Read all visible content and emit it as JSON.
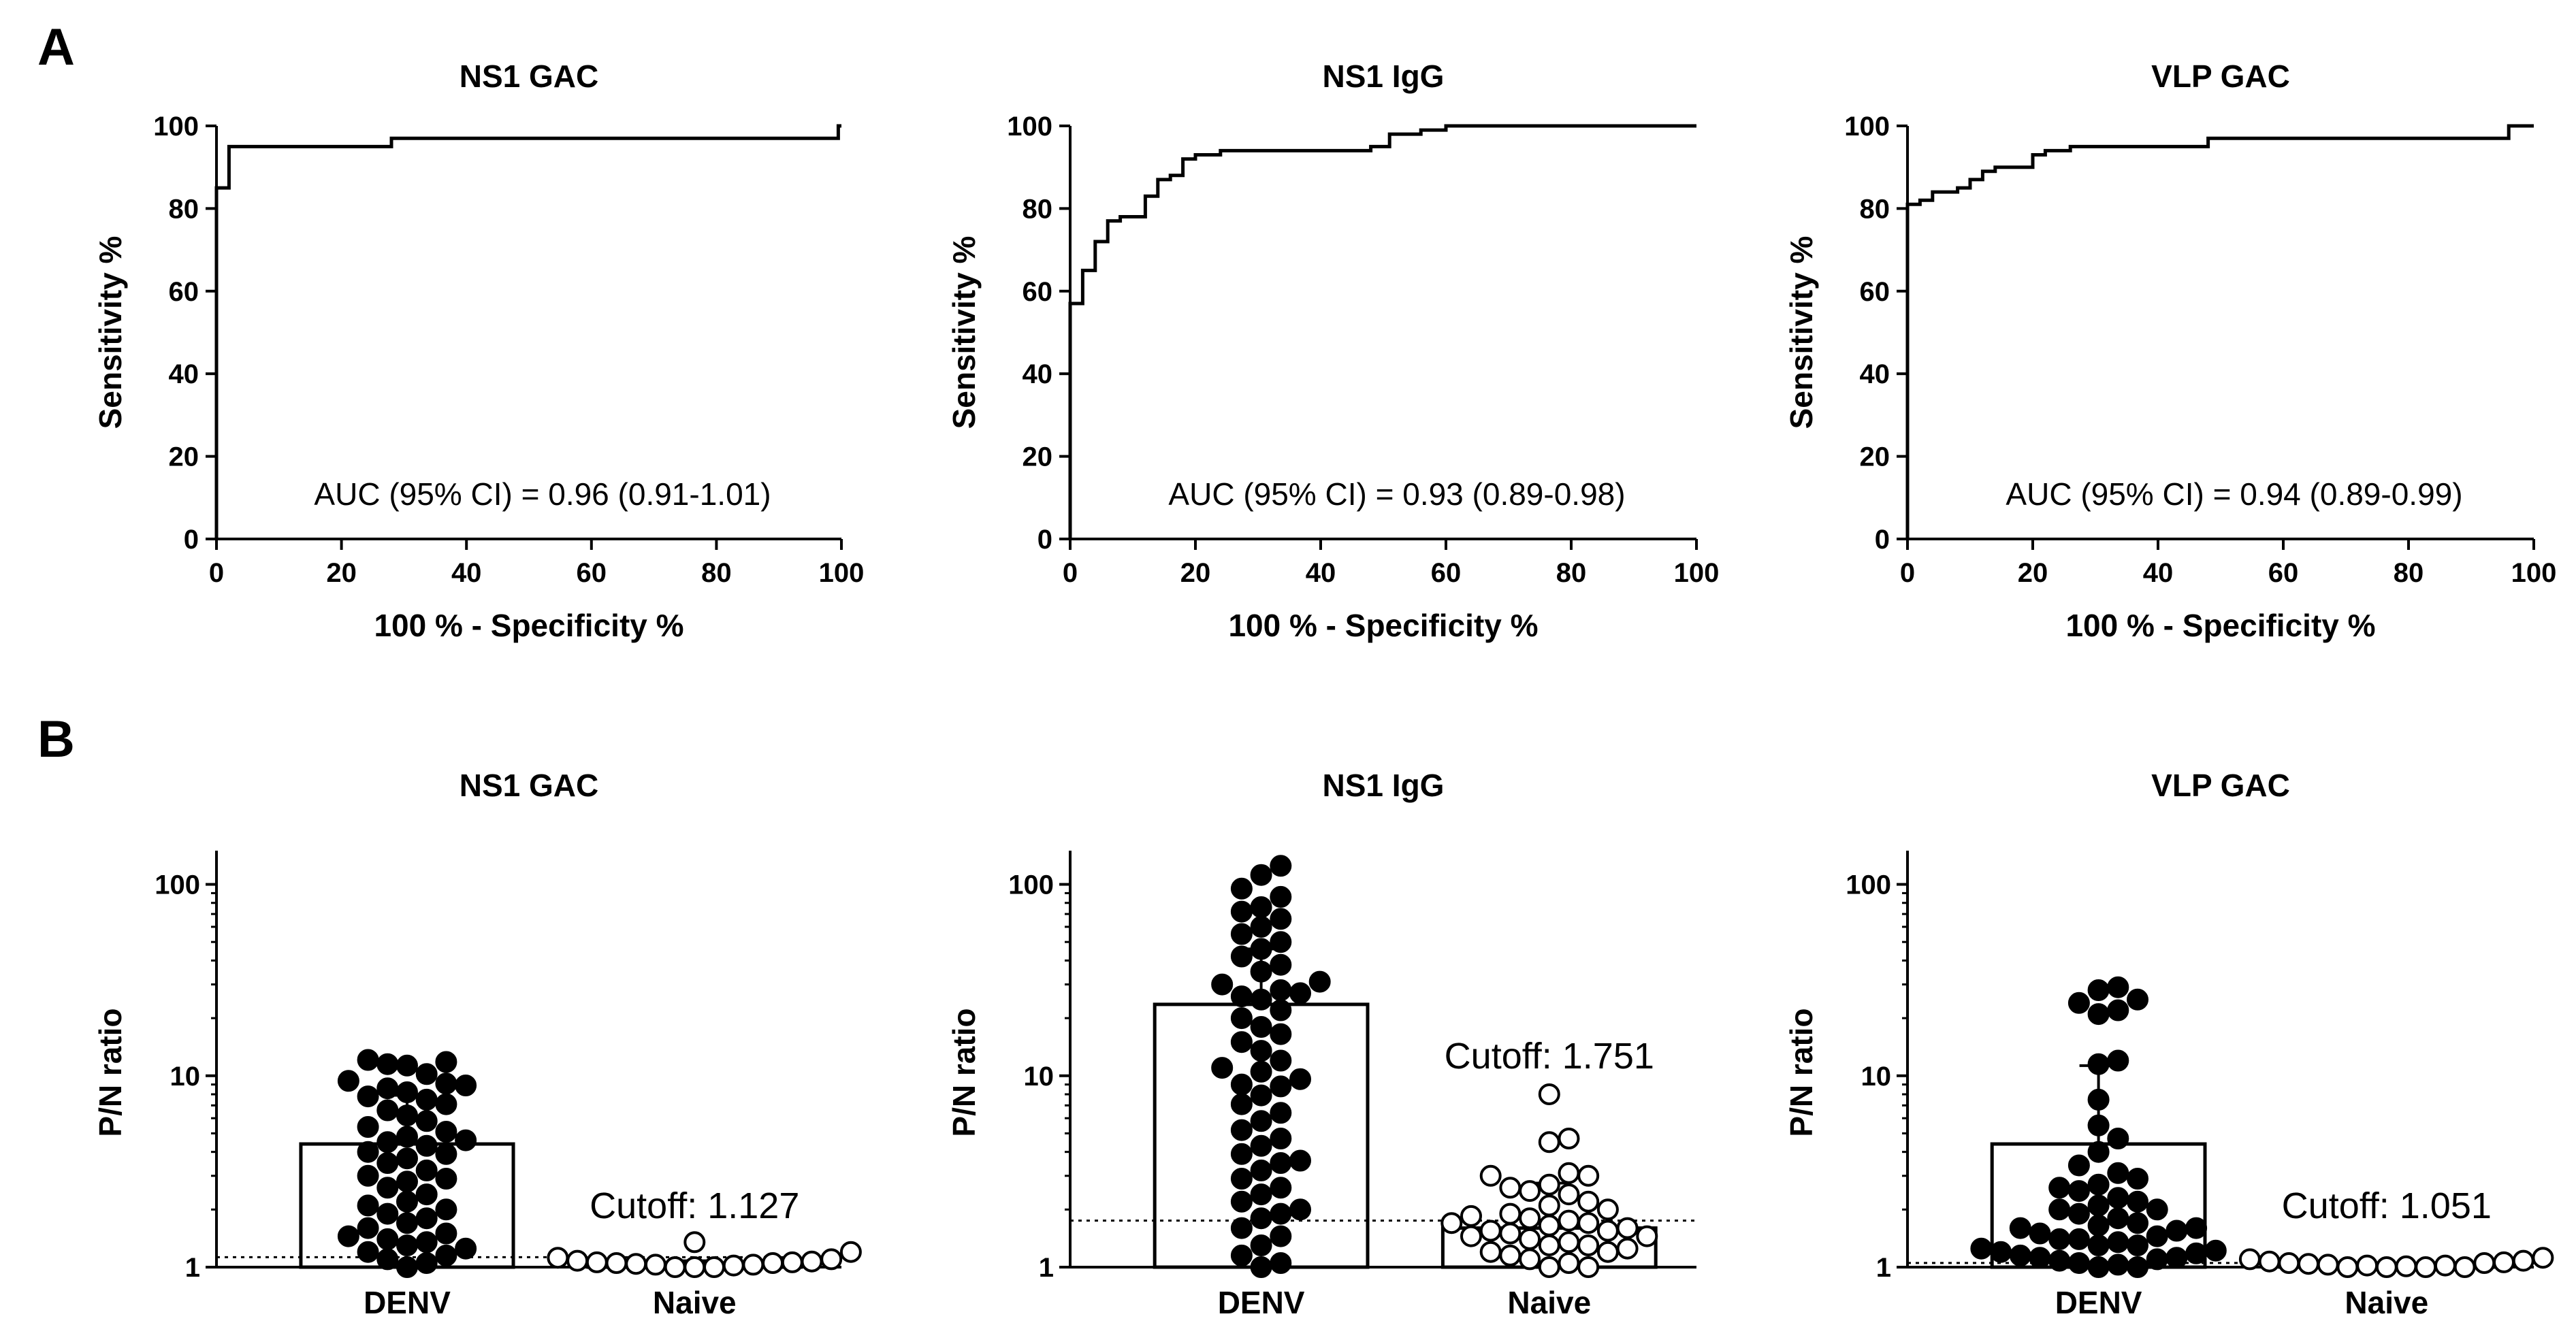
{
  "figure": {
    "panels": [
      {
        "letter": "A"
      },
      {
        "letter": "B"
      }
    ]
  },
  "colors": {
    "line": "#000000",
    "background": "#ffffff"
  },
  "chart_data": [
    {
      "type": "line",
      "panel": "A",
      "title": "NS1 GAC",
      "xlabel": "100 % - Specificity %",
      "ylabel": "Sensitivity %",
      "xlim": [
        0,
        100
      ],
      "ylim": [
        0,
        100
      ],
      "xticks": [
        0,
        20,
        40,
        60,
        80,
        100
      ],
      "yticks": [
        0,
        20,
        40,
        60,
        80,
        100
      ],
      "annotation": "AUC (95% CI) = 0.96 (0.91-1.01)",
      "x": [
        0,
        0,
        2,
        2,
        28,
        28,
        99.5,
        99.5,
        100
      ],
      "y": [
        0,
        85,
        85,
        95,
        95,
        97,
        97,
        100,
        100
      ]
    },
    {
      "type": "line",
      "panel": "A",
      "title": "NS1 IgG",
      "xlabel": "100 % - Specificity %",
      "ylabel": "Sensitivity %",
      "xlim": [
        0,
        100
      ],
      "ylim": [
        0,
        100
      ],
      "xticks": [
        0,
        20,
        40,
        60,
        80,
        100
      ],
      "yticks": [
        0,
        20,
        40,
        60,
        80,
        100
      ],
      "annotation": "AUC (95% CI) = 0.93 (0.89-0.98)",
      "x": [
        0,
        0,
        2,
        2,
        4,
        4,
        6,
        6,
        8,
        8,
        12,
        12,
        14,
        14,
        16,
        16,
        18,
        18,
        20,
        20,
        24,
        24,
        48,
        48,
        51,
        51,
        56,
        56,
        60,
        60,
        100
      ],
      "y": [
        0,
        57,
        57,
        65,
        65,
        72,
        72,
        77,
        77,
        78,
        78,
        83,
        83,
        87,
        87,
        88,
        88,
        92,
        92,
        93,
        93,
        94,
        94,
        95,
        95,
        98,
        98,
        99,
        99,
        100,
        100
      ]
    },
    {
      "type": "line",
      "panel": "A",
      "title": "VLP GAC",
      "xlabel": "100 % - Specificity %",
      "ylabel": "Sensitivity %",
      "xlim": [
        0,
        100
      ],
      "ylim": [
        0,
        100
      ],
      "xticks": [
        0,
        20,
        40,
        60,
        80,
        100
      ],
      "yticks": [
        0,
        20,
        40,
        60,
        80,
        100
      ],
      "annotation": "AUC (95% CI) = 0.94 (0.89-0.99)",
      "x": [
        0,
        0,
        2,
        2,
        4,
        4,
        8,
        8,
        10,
        10,
        12,
        12,
        14,
        14,
        20,
        20,
        22,
        22,
        26,
        26,
        48,
        48,
        96,
        96,
        100
      ],
      "y": [
        0,
        81,
        81,
        82,
        82,
        84,
        84,
        85,
        85,
        87,
        87,
        89,
        89,
        90,
        90,
        93,
        93,
        94,
        94,
        95,
        95,
        97,
        97,
        100,
        100
      ]
    },
    {
      "type": "scatter",
      "panel": "B",
      "title": "NS1 GAC",
      "ylabel": "P/N ratio",
      "yscale": "log",
      "ylim": [
        1,
        150
      ],
      "yticks": [
        1,
        10,
        100
      ],
      "categories": [
        "DENV",
        "Naive"
      ],
      "cutoff": 1.127,
      "cutoff_label": "Cutoff: 1.127",
      "series": [
        {
          "name": "DENV",
          "style": "filled",
          "bar": 4.4,
          "sd": [
            4.4,
            7.9
          ],
          "values": [
            12.1,
            11.8,
            11.5,
            11.3,
            10.2,
            9.4,
            9.1,
            8.9,
            8.6,
            8.2,
            7.8,
            7.5,
            7.1,
            6.6,
            6.2,
            5.8,
            5.4,
            5.1,
            4.8,
            4.5,
            4.3,
            4.0,
            3.7,
            3.5,
            3.2,
            3.0,
            2.8,
            2.6,
            2.4,
            2.2,
            2.0,
            1.9,
            1.8,
            1.7,
            1.6,
            1.5,
            1.45,
            1.4,
            1.35,
            1.3,
            1.25,
            1.2,
            1.15,
            1.1,
            1.05,
            1.0,
            4.6,
            3.9,
            2.9,
            2.1
          ]
        },
        {
          "name": "Naive",
          "style": "open",
          "bar": 1.05,
          "sd": [
            1.05,
            1.08
          ],
          "values": [
            1.0,
            1.0,
            1.0,
            1.02,
            1.03,
            1.03,
            1.04,
            1.05,
            1.05,
            1.06,
            1.06,
            1.07,
            1.08,
            1.1,
            1.12,
            1.2,
            1.35
          ]
        }
      ]
    },
    {
      "type": "scatter",
      "panel": "B",
      "title": "NS1 IgG",
      "ylabel": "P/N ratio",
      "yscale": "log",
      "ylim": [
        1,
        150
      ],
      "yticks": [
        1,
        10,
        100
      ],
      "categories": [
        "DENV",
        "Naive"
      ],
      "cutoff": 1.751,
      "cutoff_label": "Cutoff: 1.751",
      "series": [
        {
          "name": "DENV",
          "style": "filled",
          "bar": 23.6,
          "sd": [
            23.6,
            46
          ],
          "values": [
            125,
            112,
            95,
            86,
            76,
            72,
            66,
            60,
            55,
            50,
            46,
            42,
            38,
            35,
            31,
            28,
            27,
            26,
            25,
            22,
            20,
            18,
            16.5,
            15,
            13.5,
            12,
            11,
            10.5,
            9.6,
            8.8,
            7.9,
            7.1,
            6.4,
            5.8,
            5.2,
            4.7,
            4.3,
            3.9,
            3.5,
            3.2,
            2.9,
            2.6,
            2.4,
            2.2,
            2.0,
            1.8,
            1.6,
            1.45,
            1.3,
            1.15,
            1.05,
            1.0,
            30,
            9,
            3.6,
            1.9
          ]
        },
        {
          "name": "Naive",
          "style": "open",
          "bar": 1.6,
          "sd": [
            1.6,
            2.75
          ],
          "values": [
            8.0,
            4.7,
            4.5,
            3.1,
            3.0,
            3.0,
            2.7,
            2.6,
            2.5,
            2.4,
            2.2,
            2.1,
            2.0,
            1.9,
            1.85,
            1.8,
            1.75,
            1.7,
            1.65,
            1.6,
            1.55,
            1.5,
            1.45,
            1.4,
            1.35,
            1.3,
            1.25,
            1.2,
            1.15,
            1.1,
            1.05,
            1.0,
            1.0,
            1.45,
            1.7,
            1.3,
            1.55,
            1.2
          ]
        }
      ]
    },
    {
      "type": "scatter",
      "panel": "B",
      "title": "VLP GAC",
      "ylabel": "P/N ratio",
      "yscale": "log",
      "ylim": [
        1,
        150
      ],
      "yticks": [
        1,
        10,
        100
      ],
      "categories": [
        "DENV",
        "Naive"
      ],
      "cutoff": 1.051,
      "cutoff_label": "Cutoff: 1.051",
      "series": [
        {
          "name": "DENV",
          "style": "filled",
          "bar": 4.4,
          "sd": [
            4.4,
            11.3
          ],
          "values": [
            29,
            28,
            25,
            24,
            22,
            21,
            12,
            11.5,
            7.5,
            5.5,
            4.7,
            4.0,
            3.4,
            3.1,
            2.9,
            2.7,
            2.5,
            2.3,
            2.2,
            2.1,
            2.0,
            1.9,
            1.8,
            1.7,
            1.65,
            1.6,
            1.55,
            1.5,
            1.45,
            1.4,
            1.35,
            1.3,
            1.25,
            1.22,
            1.2,
            1.18,
            1.15,
            1.12,
            1.1,
            1.08,
            1.05,
            1.03,
            1.0,
            1.0,
            1.6,
            2.0,
            1.3,
            2.6,
            1.12,
            1.4
          ]
        },
        {
          "name": "Naive",
          "style": "open",
          "bar": 1.02,
          "sd": [
            1.02,
            1.05
          ],
          "values": [
            1.0,
            1.0,
            1.0,
            1.0,
            1.01,
            1.02,
            1.03,
            1.04,
            1.05,
            1.06,
            1.07,
            1.08,
            1.1,
            1.12,
            1.05,
            1.02
          ]
        }
      ]
    }
  ]
}
